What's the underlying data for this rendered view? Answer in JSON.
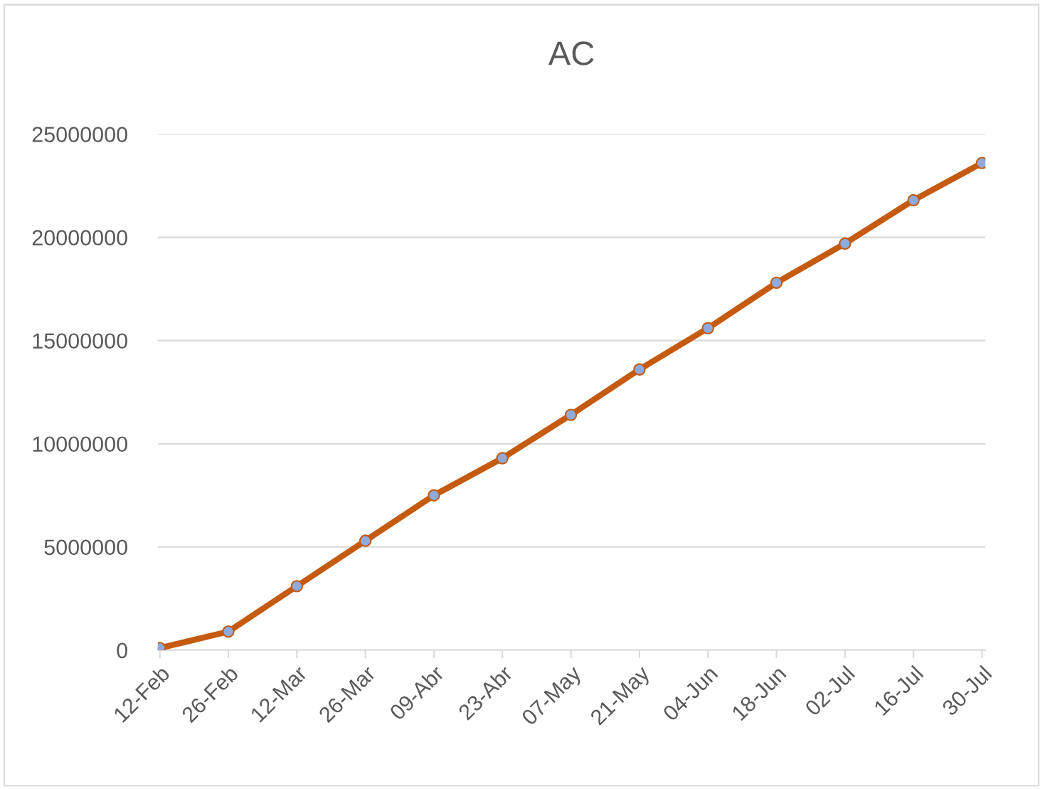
{
  "chart_data": {
    "type": "line",
    "title": "AC",
    "categories": [
      "12-Feb",
      "26-Feb",
      "12-Mar",
      "26-Mar",
      "09-Abr",
      "23-Abr",
      "07-May",
      "21-May",
      "04-Jun",
      "18-Jun",
      "02-Jul",
      "16-Jul",
      "30-Jul"
    ],
    "series": [
      {
        "color": "#c55a11",
        "values": [
          100000,
          900000,
          3100000,
          5300000,
          7500000,
          9300000,
          11400000,
          13600000,
          15600000,
          17800000,
          19700000,
          21800000,
          23600000
        ]
      }
    ],
    "ylim": [
      0,
      25000000
    ],
    "yticks": [
      0,
      5000000,
      10000000,
      15000000,
      20000000,
      25000000
    ],
    "grid": "y",
    "marker": "circle",
    "line_style": "solid",
    "legend": false
  }
}
